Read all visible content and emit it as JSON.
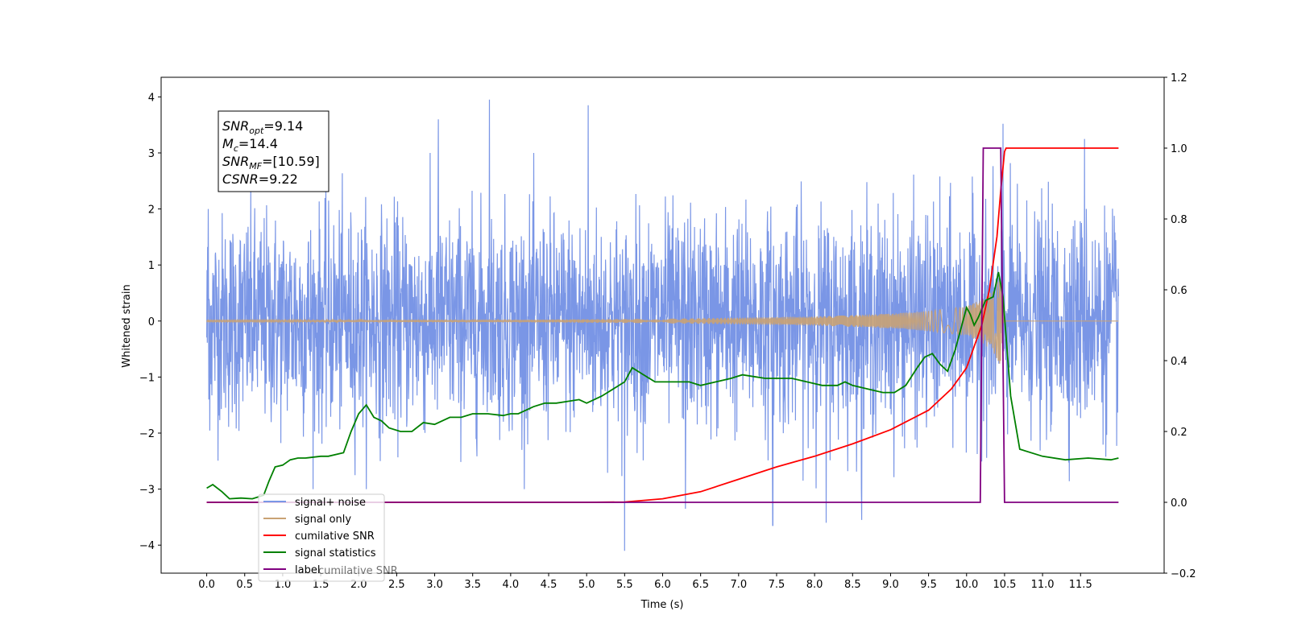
{
  "chart_data": {
    "type": "line",
    "xlabel": "Time (s)",
    "ylabel_left": "Whitened strain",
    "ylabel_right": "",
    "xlim": [
      -0.6,
      12.6
    ],
    "ylim_left": [
      -4.5,
      4.35
    ],
    "ylim_right": [
      -0.2,
      1.2
    ],
    "x_ticks": [
      0.0,
      0.5,
      1.0,
      1.5,
      2.0,
      2.5,
      3.0,
      3.5,
      4.0,
      4.5,
      5.0,
      5.5,
      6.0,
      6.5,
      7.0,
      7.5,
      8.0,
      8.5,
      9.0,
      9.5,
      10.0,
      10.5,
      11.0,
      11.5
    ],
    "x_tick_labels": [
      "0.0",
      "0.5",
      "1.0",
      "1.5",
      "2.0",
      "2.5",
      "3.0",
      "3.5",
      "4.0",
      "4.5",
      "5.0",
      "5.5",
      "6.0",
      "6.5",
      "7.0",
      "7.5",
      "8.0",
      "8.5",
      "9.0",
      "9.5",
      "10.0",
      "10.5",
      "11.0",
      "11.5"
    ],
    "y_left_ticks": [
      -4,
      -3,
      -2,
      -1,
      0,
      1,
      2,
      3,
      4
    ],
    "y_left_tick_labels": [
      "−4",
      "−3",
      "−2",
      "−1",
      "0",
      "1",
      "2",
      "3",
      "4"
    ],
    "y_right_ticks": [
      -0.2,
      0.0,
      0.2,
      0.4,
      0.6,
      0.8,
      1.0,
      1.2
    ],
    "y_right_tick_labels": [
      "−0.2",
      "0.0",
      "0.2",
      "0.4",
      "0.6",
      "0.8",
      "1.0",
      "1.2"
    ],
    "grid": false,
    "legend_position": "bottom-left",
    "annotation": {
      "lines": [
        {
          "sym": "SNR",
          "sub": "opt",
          "val": "=9.14"
        },
        {
          "sym": "M",
          "sub": "c",
          "val": "=14.4"
        },
        {
          "sym": "SNR",
          "sub": "MF",
          "val": "=[10.59]"
        },
        {
          "sym": "CSNR",
          "sub": "",
          "val": "=9.22"
        }
      ]
    },
    "series": [
      {
        "name": "signal+ noise",
        "axis": "left",
        "color": "#7a96e6",
        "kind": "noise",
        "x_range": [
          0.0,
          12.0
        ],
        "amplitude_band": [
          -2.3,
          2.3
        ],
        "extreme_points": [
          {
            "x": 0.02,
            "y": 2.0
          },
          {
            "x": 0.03,
            "y": -1.4
          },
          {
            "x": 3.05,
            "y": 3.6
          },
          {
            "x": 3.72,
            "y": 3.95
          },
          {
            "x": 5.02,
            "y": 3.85
          },
          {
            "x": 5.5,
            "y": -4.1
          },
          {
            "x": 6.3,
            "y": -3.35
          },
          {
            "x": 7.45,
            "y": -3.65
          },
          {
            "x": 8.15,
            "y": -3.6
          },
          {
            "x": 8.62,
            "y": -3.55
          },
          {
            "x": 10.48,
            "y": 3.52
          },
          {
            "x": 11.55,
            "y": 3.25
          }
        ]
      },
      {
        "name": "signal only",
        "axis": "left",
        "color": "#c9a274",
        "kind": "chirp",
        "x_range": [
          0.0,
          12.0
        ],
        "envelope": [
          [
            0,
            0.01
          ],
          [
            4.0,
            0.02
          ],
          [
            6.0,
            0.04
          ],
          [
            8.0,
            0.08
          ],
          [
            9.0,
            0.13
          ],
          [
            9.5,
            0.18
          ],
          [
            10.0,
            0.26
          ],
          [
            10.2,
            0.38
          ],
          [
            10.35,
            0.55
          ],
          [
            10.45,
            0.8
          ],
          [
            10.5,
            0.0
          ],
          [
            12.0,
            0.0
          ]
        ]
      },
      {
        "name": "cumilative SNR",
        "axis": "right",
        "color": "#ff0000",
        "x": [
          0.0,
          5.0,
          5.5,
          6.0,
          6.5,
          7.0,
          7.5,
          8.0,
          8.5,
          9.0,
          9.5,
          9.8,
          10.0,
          10.2,
          10.3,
          10.4,
          10.45,
          10.5,
          10.52,
          12.0
        ],
        "y": [
          0.0,
          0.0,
          0.001,
          0.01,
          0.03,
          0.065,
          0.1,
          0.13,
          0.165,
          0.205,
          0.26,
          0.32,
          0.38,
          0.5,
          0.6,
          0.75,
          0.88,
          0.99,
          1.0,
          1.0
        ]
      },
      {
        "name": "signal statistics",
        "axis": "right",
        "color": "#008000",
        "x": [
          0.0,
          0.08,
          0.2,
          0.3,
          0.45,
          0.6,
          0.75,
          0.82,
          0.9,
          1.0,
          1.1,
          1.2,
          1.3,
          1.5,
          1.6,
          1.8,
          1.9,
          2.0,
          2.1,
          2.2,
          2.3,
          2.4,
          2.55,
          2.7,
          2.85,
          3.0,
          3.2,
          3.35,
          3.5,
          3.7,
          3.9,
          4.0,
          4.1,
          4.3,
          4.45,
          4.6,
          4.75,
          4.9,
          5.0,
          5.2,
          5.35,
          5.5,
          5.6,
          5.75,
          5.9,
          6.0,
          6.2,
          6.35,
          6.5,
          6.7,
          6.9,
          7.05,
          7.2,
          7.35,
          7.5,
          7.7,
          7.9,
          8.1,
          8.3,
          8.4,
          8.5,
          8.7,
          8.9,
          9.05,
          9.2,
          9.35,
          9.45,
          9.55,
          9.65,
          9.75,
          9.85,
          9.95,
          10.0,
          10.05,
          10.1,
          10.15,
          10.25,
          10.35,
          10.42,
          10.48,
          10.58,
          10.7,
          11.0,
          11.3,
          11.6,
          11.9,
          12.0
        ],
        "y": [
          0.04,
          0.05,
          0.03,
          0.01,
          0.012,
          0.01,
          0.02,
          0.06,
          0.1,
          0.105,
          0.12,
          0.125,
          0.125,
          0.13,
          0.13,
          0.14,
          0.2,
          0.25,
          0.275,
          0.24,
          0.23,
          0.21,
          0.2,
          0.2,
          0.225,
          0.22,
          0.24,
          0.24,
          0.25,
          0.25,
          0.245,
          0.25,
          0.25,
          0.27,
          0.28,
          0.28,
          0.285,
          0.29,
          0.28,
          0.3,
          0.32,
          0.34,
          0.38,
          0.36,
          0.34,
          0.34,
          0.34,
          0.34,
          0.33,
          0.34,
          0.35,
          0.36,
          0.355,
          0.35,
          0.35,
          0.35,
          0.34,
          0.33,
          0.33,
          0.34,
          0.33,
          0.32,
          0.31,
          0.31,
          0.33,
          0.38,
          0.41,
          0.42,
          0.39,
          0.37,
          0.43,
          0.51,
          0.55,
          0.53,
          0.5,
          0.52,
          0.57,
          0.58,
          0.65,
          0.58,
          0.3,
          0.15,
          0.13,
          0.12,
          0.125,
          0.12,
          0.125
        ]
      },
      {
        "name": "label",
        "axis": "right",
        "color": "#800080",
        "x": [
          0.0,
          10.18,
          10.22,
          10.45,
          10.5,
          12.0
        ],
        "y": [
          0.0,
          0.0,
          1.0,
          1.0,
          0.0,
          0.0
        ]
      }
    ],
    "legend_overlap_text": "cumilative SNR"
  }
}
